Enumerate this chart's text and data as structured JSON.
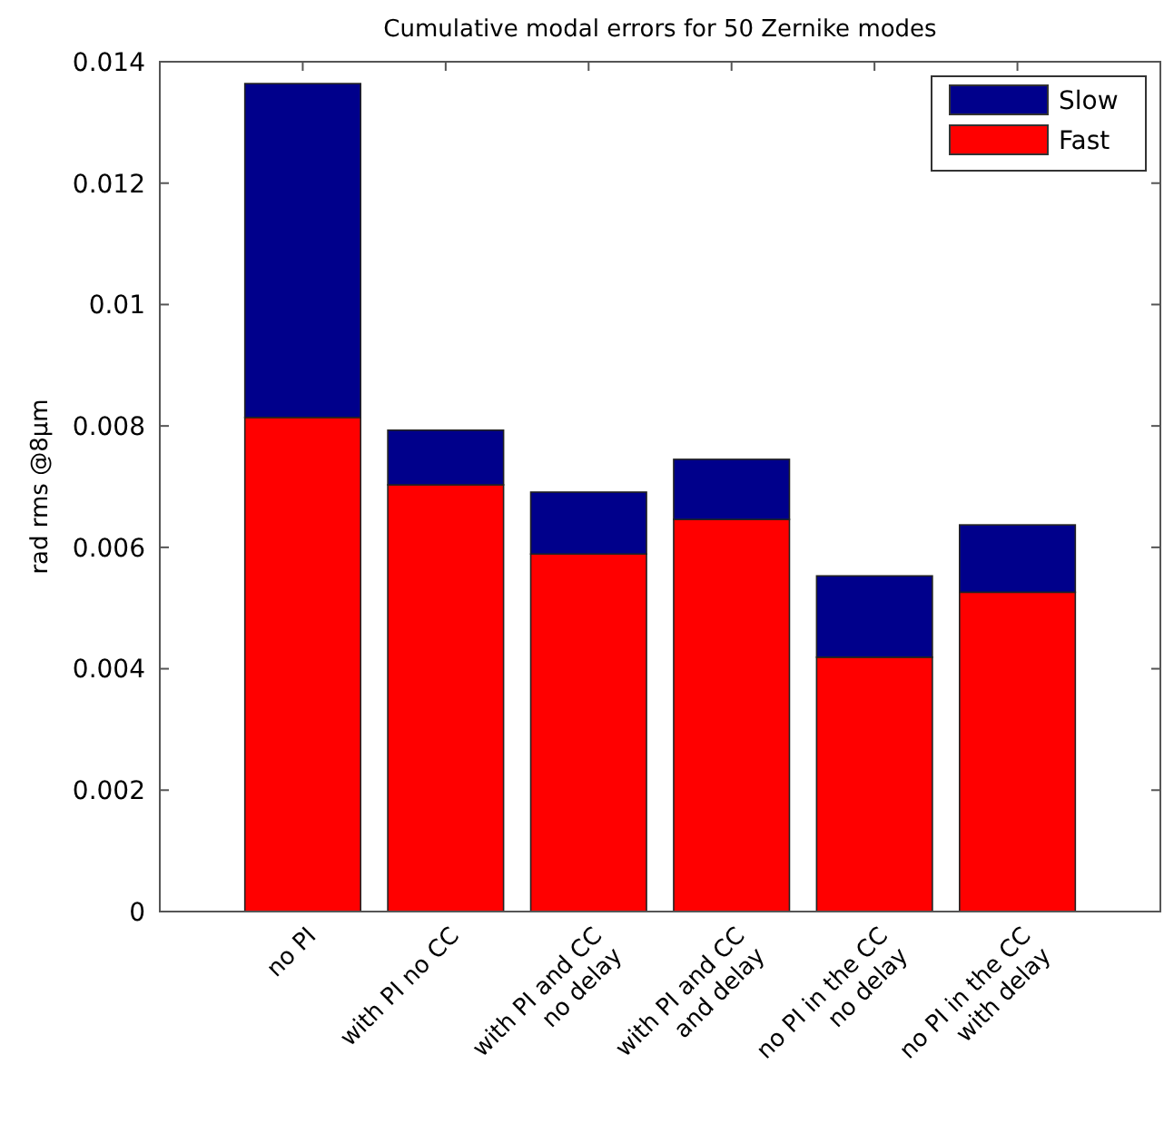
{
  "chart_data": {
    "type": "bar",
    "title": "Cumulative modal errors for 50 Zernike modes",
    "ylabel": "rad rms @8µm",
    "categories": [
      "no PI",
      "with PI no CC",
      "with PI and CC\nno delay",
      "with PI and CC\nand delay",
      "no PI in the CC\nno delay",
      "no PI in the CC\nwith delay"
    ],
    "stacked": true,
    "series": [
      {
        "name": "Fast",
        "color": "#ff0000",
        "values": [
          0.00814,
          0.00703,
          0.00589,
          0.00646,
          0.00419,
          0.00526
        ]
      },
      {
        "name": "Slow",
        "color": "#00008b",
        "values": [
          0.0055,
          0.0009,
          0.00102,
          0.00099,
          0.00134,
          0.00111
        ]
      }
    ],
    "ylim": [
      0,
      0.014
    ],
    "yticks": [
      0,
      0.002,
      0.004,
      0.006,
      0.008,
      0.01,
      0.012,
      0.014
    ],
    "legend": "top right",
    "grid": false
  }
}
